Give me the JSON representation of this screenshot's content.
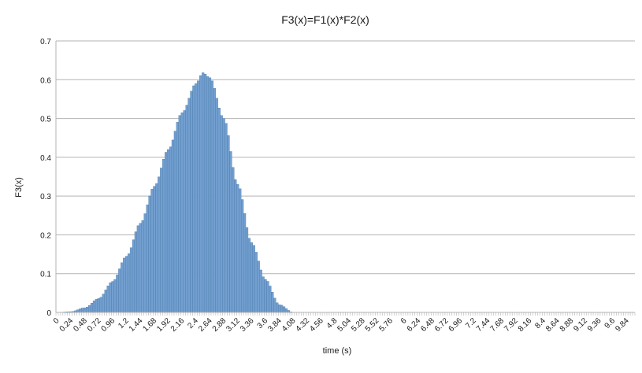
{
  "chart_data": {
    "type": "bar",
    "title": "F3(x)=F1(x)*F2(x)",
    "xlabel": "time (s)",
    "ylabel": "F3(x)",
    "x_start": 0,
    "x_end": 9.96,
    "x_step": 0.04,
    "tick_labels": [
      "0",
      "0.24",
      "0.48",
      "0.72",
      "0.96",
      "1.2",
      "1.44",
      "1.68",
      "1.92",
      "2.16",
      "2.4",
      "2.64",
      "2.88",
      "3.12",
      "3.36",
      "3.6",
      "3.84",
      "4.08",
      "4.32",
      "4.56",
      "4.8",
      "5.04",
      "5.28",
      "5.52",
      "5.76",
      "6",
      "6.24",
      "6.48",
      "6.72",
      "6.96",
      "7.2",
      "7.44",
      "7.68",
      "7.92",
      "8.16",
      "8.4",
      "8.64",
      "8.88",
      "9.12",
      "9.36",
      "9.6",
      "9.84"
    ],
    "yticks": [
      "0",
      "0.1",
      "0.2",
      "0.3",
      "0.4",
      "0.5",
      "0.6",
      "0.7"
    ],
    "ylim": [
      0,
      0.7
    ],
    "grid": true,
    "bar_color": "#729fcf",
    "bar_edge_color": "#3b6fa0",
    "points": [
      [
        0,
        0.0
      ],
      [
        0.24,
        0.002
      ],
      [
        0.48,
        0.012
      ],
      [
        0.72,
        0.036
      ],
      [
        0.96,
        0.08
      ],
      [
        1.2,
        0.145
      ],
      [
        1.44,
        0.23
      ],
      [
        1.68,
        0.325
      ],
      [
        1.92,
        0.42
      ],
      [
        2.16,
        0.515
      ],
      [
        2.4,
        0.59
      ],
      [
        2.52,
        0.618
      ],
      [
        2.64,
        0.605
      ],
      [
        2.88,
        0.5
      ],
      [
        3.12,
        0.33
      ],
      [
        3.36,
        0.18
      ],
      [
        3.6,
        0.085
      ],
      [
        3.84,
        0.02
      ],
      [
        4.08,
        0.0
      ],
      [
        9.96,
        0.0
      ]
    ]
  }
}
